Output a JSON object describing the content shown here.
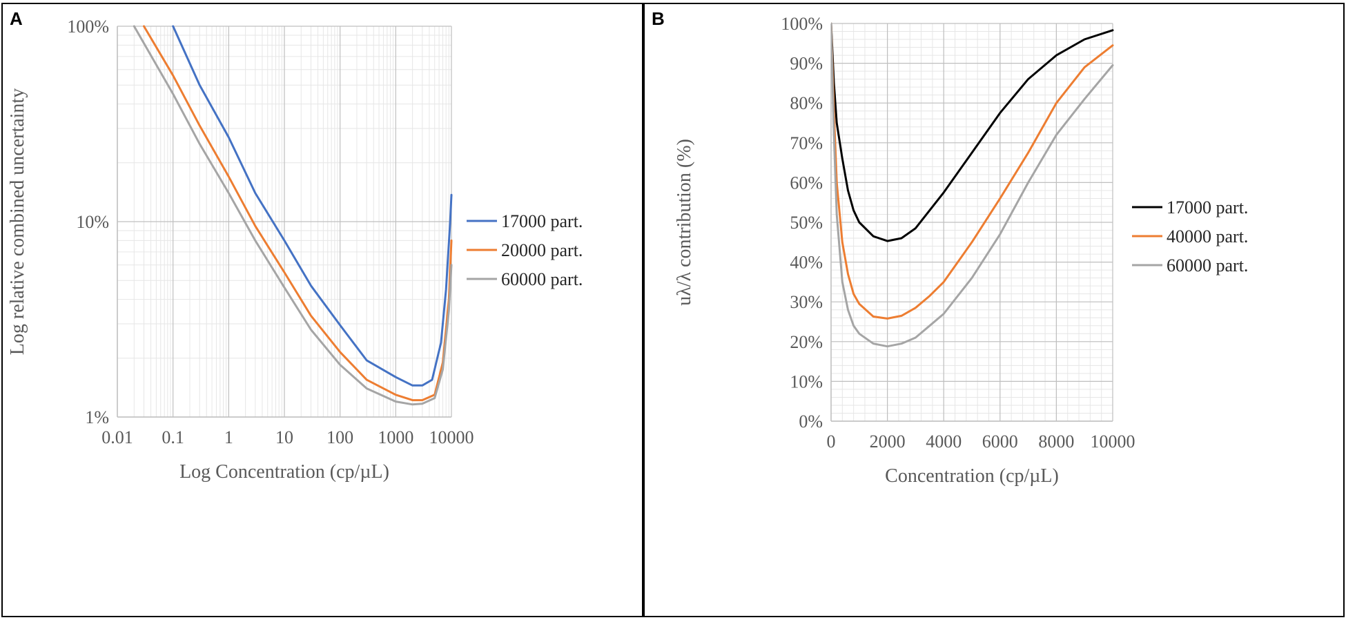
{
  "chart_data": [
    {
      "id": "A",
      "panel_label": "A",
      "type": "line",
      "x_scale": "log",
      "y_scale": "log",
      "xlabel": "Log Concentration (cp/µL)",
      "ylabel": "Log relative combined uncertainty",
      "xlim": [
        0.01,
        10000
      ],
      "ylim": [
        1,
        100
      ],
      "x_ticks": [
        {
          "v": 0.01,
          "label": "0.01"
        },
        {
          "v": 0.1,
          "label": "0.1"
        },
        {
          "v": 1,
          "label": "1"
        },
        {
          "v": 10,
          "label": "10"
        },
        {
          "v": 100,
          "label": "100"
        },
        {
          "v": 1000,
          "label": "1000"
        },
        {
          "v": 10000,
          "label": "10000"
        }
      ],
      "y_ticks": [
        {
          "v": 1,
          "label": "1%"
        },
        {
          "v": 10,
          "label": "10%"
        },
        {
          "v": 100,
          "label": "100%"
        }
      ],
      "grid": true,
      "legend_position": "right",
      "series": [
        {
          "name": "17000 part.",
          "color": "#4472C4",
          "points": [
            [
              0.1,
              100
            ],
            [
              0.3,
              50
            ],
            [
              1,
              27
            ],
            [
              3,
              14
            ],
            [
              10,
              8
            ],
            [
              30,
              4.7
            ],
            [
              100,
              2.95
            ],
            [
              300,
              1.95
            ],
            [
              1000,
              1.6
            ],
            [
              2000,
              1.45
            ],
            [
              3000,
              1.45
            ],
            [
              4500,
              1.55
            ],
            [
              6500,
              2.4
            ],
            [
              8000,
              4.5
            ],
            [
              9500,
              10
            ],
            [
              10000,
              13.7
            ]
          ]
        },
        {
          "name": "20000 part.",
          "color": "#ED7D31",
          "points": [
            [
              0.03,
              100
            ],
            [
              0.1,
              56
            ],
            [
              0.3,
              31
            ],
            [
              1,
              17
            ],
            [
              3,
              9.5
            ],
            [
              10,
              5.5
            ],
            [
              30,
              3.3
            ],
            [
              100,
              2.15
            ],
            [
              300,
              1.55
            ],
            [
              1000,
              1.3
            ],
            [
              2000,
              1.22
            ],
            [
              3000,
              1.22
            ],
            [
              5000,
              1.3
            ],
            [
              7000,
              1.9
            ],
            [
              9000,
              4
            ],
            [
              10000,
              8
            ]
          ]
        },
        {
          "name": "60000 part.",
          "color": "#A5A5A5",
          "points": [
            [
              0.02,
              100
            ],
            [
              0.1,
              45
            ],
            [
              0.3,
              25
            ],
            [
              1,
              14
            ],
            [
              3,
              8
            ],
            [
              10,
              4.6
            ],
            [
              30,
              2.8
            ],
            [
              100,
              1.85
            ],
            [
              300,
              1.4
            ],
            [
              1000,
              1.2
            ],
            [
              2000,
              1.16
            ],
            [
              3000,
              1.17
            ],
            [
              5000,
              1.25
            ],
            [
              7000,
              1.75
            ],
            [
              9000,
              3.5
            ],
            [
              10000,
              6
            ]
          ]
        }
      ]
    },
    {
      "id": "B",
      "panel_label": "B",
      "type": "line",
      "x_scale": "linear",
      "y_scale": "linear",
      "xlabel": "Concentration (cp/µL)",
      "ylabel": "uλ/λ contribution (%)",
      "xlim": [
        0,
        10000
      ],
      "ylim": [
        0,
        100
      ],
      "x_ticks": [
        {
          "v": 0,
          "label": "0"
        },
        {
          "v": 2000,
          "label": "2000"
        },
        {
          "v": 4000,
          "label": "4000"
        },
        {
          "v": 6000,
          "label": "6000"
        },
        {
          "v": 8000,
          "label": "8000"
        },
        {
          "v": 10000,
          "label": "10000"
        }
      ],
      "y_ticks": [
        {
          "v": 0,
          "label": "0%"
        },
        {
          "v": 10,
          "label": "10%"
        },
        {
          "v": 20,
          "label": "20%"
        },
        {
          "v": 30,
          "label": "30%"
        },
        {
          "v": 40,
          "label": "40%"
        },
        {
          "v": 50,
          "label": "50%"
        },
        {
          "v": 60,
          "label": "60%"
        },
        {
          "v": 70,
          "label": "70%"
        },
        {
          "v": 80,
          "label": "80%"
        },
        {
          "v": 90,
          "label": "90%"
        },
        {
          "v": 100,
          "label": "100%"
        }
      ],
      "grid": true,
      "legend_position": "right",
      "series": [
        {
          "name": "17000 part.",
          "color": "#000000",
          "points": [
            [
              0,
              100
            ],
            [
              100,
              85
            ],
            [
              200,
              75
            ],
            [
              400,
              66
            ],
            [
              600,
              58
            ],
            [
              800,
              53
            ],
            [
              1000,
              50
            ],
            [
              1500,
              46.5
            ],
            [
              2000,
              45.3
            ],
            [
              2500,
              46
            ],
            [
              3000,
              48.5
            ],
            [
              3500,
              53
            ],
            [
              4000,
              57.5
            ],
            [
              4500,
              62.5
            ],
            [
              5000,
              67.5
            ],
            [
              6000,
              77.5
            ],
            [
              7000,
              86
            ],
            [
              8000,
              92
            ],
            [
              9000,
              96
            ],
            [
              10000,
              98.3
            ]
          ]
        },
        {
          "name": "40000 part.",
          "color": "#ED7D31",
          "points": [
            [
              0,
              100
            ],
            [
              100,
              78
            ],
            [
              200,
              60
            ],
            [
              400,
              45
            ],
            [
              600,
              37
            ],
            [
              800,
              32
            ],
            [
              1000,
              29.5
            ],
            [
              1500,
              26.3
            ],
            [
              2000,
              25.8
            ],
            [
              2500,
              26.5
            ],
            [
              3000,
              28.5
            ],
            [
              3500,
              31.5
            ],
            [
              4000,
              35
            ],
            [
              5000,
              45
            ],
            [
              6000,
              56
            ],
            [
              7000,
              67.5
            ],
            [
              8000,
              80
            ],
            [
              9000,
              89
            ],
            [
              10000,
              94.5
            ]
          ]
        },
        {
          "name": "60000 part.",
          "color": "#A5A5A5",
          "points": [
            [
              0,
              100
            ],
            [
              100,
              72
            ],
            [
              200,
              52
            ],
            [
              400,
              35
            ],
            [
              600,
              28
            ],
            [
              800,
              24
            ],
            [
              1000,
              22
            ],
            [
              1500,
              19.5
            ],
            [
              2000,
              18.8
            ],
            [
              2500,
              19.5
            ],
            [
              3000,
              21
            ],
            [
              3500,
              24
            ],
            [
              4000,
              27
            ],
            [
              5000,
              36
            ],
            [
              6000,
              47
            ],
            [
              7000,
              60
            ],
            [
              8000,
              72
            ],
            [
              9000,
              81
            ],
            [
              10000,
              89.5
            ]
          ]
        }
      ]
    }
  ]
}
